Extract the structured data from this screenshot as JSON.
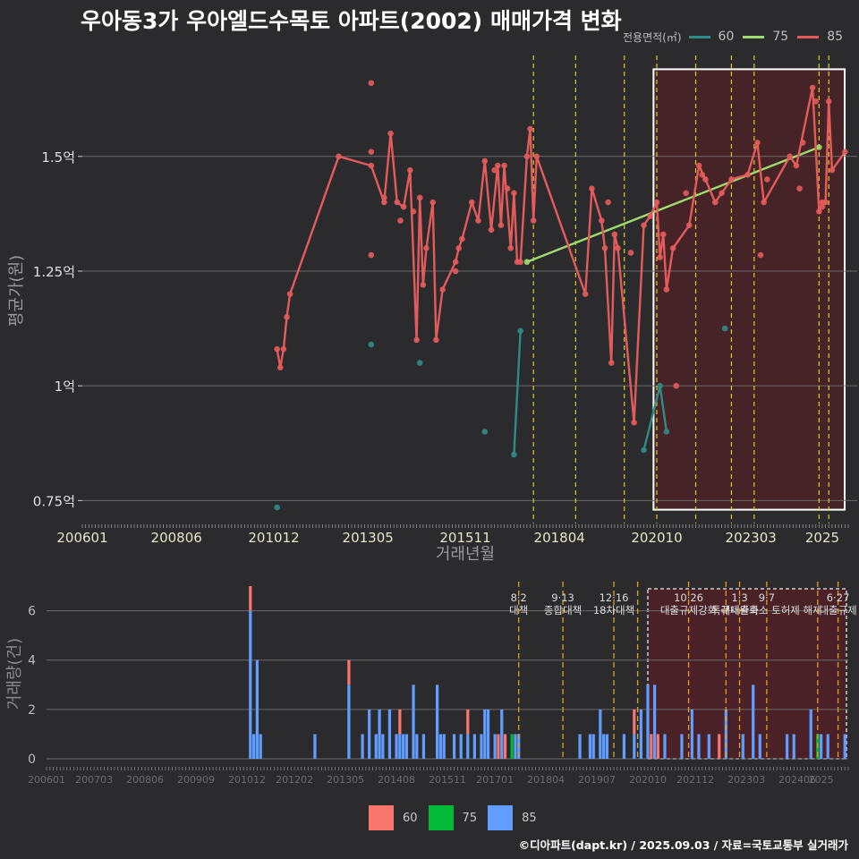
{
  "title": "우아동3가 우아엘드수목토 아파트(2002) 매매가격 변화",
  "credit": "©디아파트(dapt.kr) / 2025.09.03 / 자료=국토교통부 실거래가",
  "legend_top": {
    "title": "전용면적(㎡)",
    "items": [
      {
        "label": "60",
        "color": "#2e8b87"
      },
      {
        "label": "75",
        "color": "#9edc6e"
      },
      {
        "label": "85",
        "color": "#e45b5b"
      }
    ]
  },
  "legend_bottom": {
    "items": [
      {
        "label": "60",
        "color": "#f8766d"
      },
      {
        "label": "75",
        "color": "#00ba38"
      },
      {
        "label": "85",
        "color": "#619cff"
      }
    ]
  },
  "chart_data": [
    {
      "type": "line",
      "xlabel": "거래년월",
      "ylabel": "평균가(원)",
      "xlim": [
        "2006-01",
        "2025-09"
      ],
      "ylim": [
        0.7,
        1.72
      ],
      "x_ticks": [
        "200601",
        "200806",
        "201012",
        "201305",
        "201511",
        "201804",
        "202010",
        "202303",
        "2025"
      ],
      "y_ticks": [
        {
          "value": 0.75,
          "label": "0.75억"
        },
        {
          "value": 1.0,
          "label": "1억"
        },
        {
          "value": 1.25,
          "label": "1.25억"
        },
        {
          "value": 1.5,
          "label": "1.5억"
        }
      ],
      "highlight_region": {
        "x_start": "2020-09",
        "x_end": "2025-09",
        "y_start": 0.73,
        "y_end": 1.69
      },
      "vlines": [
        "2017-08",
        "2018-09",
        "2019-12",
        "2020-10",
        "2021-10",
        "2022-09",
        "2023-04",
        "2024-12",
        "2025-03"
      ],
      "series": [
        {
          "name": "60",
          "color": "#2e8b87",
          "line": [
            [
              "2017-02",
              0.85
            ],
            [
              "2017-04",
              1.12
            ]
          ],
          "line2": [
            [
              "2020-06",
              0.86
            ],
            [
              "2020-11",
              1.0
            ],
            [
              "2021-01",
              0.9
            ]
          ],
          "points": [
            [
              "2011-01",
              0.735
            ],
            [
              "2013-06",
              1.09
            ],
            [
              "2014-09",
              1.05
            ],
            [
              "2016-05",
              0.9
            ],
            [
              "2017-02",
              0.85
            ],
            [
              "2017-04",
              1.12
            ],
            [
              "2020-06",
              0.86
            ],
            [
              "2020-11",
              1.0
            ],
            [
              "2021-01",
              0.9
            ],
            [
              "2022-07",
              1.125
            ]
          ]
        },
        {
          "name": "75",
          "color": "#9edc6e",
          "line": [
            [
              "2017-06",
              1.27
            ],
            [
              "2024-12",
              1.52
            ]
          ],
          "points": [
            [
              "2017-06",
              1.27
            ],
            [
              "2024-12",
              1.52
            ]
          ]
        },
        {
          "name": "85",
          "color": "#e45b5b",
          "line": [
            [
              "2011-01",
              1.08
            ],
            [
              "2011-02",
              1.04
            ],
            [
              "2011-03",
              1.08
            ],
            [
              "2011-04",
              1.15
            ],
            [
              "2011-05",
              1.2
            ],
            [
              "2012-08",
              1.5
            ],
            [
              "2013-06",
              1.48
            ],
            [
              "2013-10",
              1.4
            ],
            [
              "2013-12",
              1.55
            ],
            [
              "2014-02",
              1.4
            ],
            [
              "2014-04",
              1.39
            ],
            [
              "2014-06",
              1.47
            ],
            [
              "2014-08",
              1.1
            ],
            [
              "2014-09",
              1.41
            ],
            [
              "2014-10",
              1.22
            ],
            [
              "2014-11",
              1.3
            ],
            [
              "2015-01",
              1.4
            ],
            [
              "2015-02",
              1.1
            ],
            [
              "2015-04",
              1.21
            ],
            [
              "2015-08",
              1.27
            ],
            [
              "2015-09",
              1.3
            ],
            [
              "2015-10",
              1.32
            ],
            [
              "2016-01",
              1.4
            ],
            [
              "2016-03",
              1.36
            ],
            [
              "2016-05",
              1.49
            ],
            [
              "2016-07",
              1.34
            ],
            [
              "2016-09",
              1.48
            ],
            [
              "2016-10",
              1.35
            ],
            [
              "2016-11",
              1.48
            ],
            [
              "2017-01",
              1.3
            ],
            [
              "2017-02",
              1.42
            ],
            [
              "2017-03",
              1.27
            ],
            [
              "2017-04",
              1.27
            ],
            [
              "2017-06",
              1.5
            ],
            [
              "2017-07",
              1.56
            ],
            [
              "2017-08",
              1.36
            ],
            [
              "2017-09",
              1.5
            ],
            [
              "2018-12",
              1.2
            ],
            [
              "2019-02",
              1.43
            ],
            [
              "2019-05",
              1.36
            ],
            [
              "2019-06",
              1.3
            ],
            [
              "2019-08",
              1.05
            ],
            [
              "2019-09",
              1.33
            ],
            [
              "2019-10",
              1.3
            ],
            [
              "2020-03",
              0.92
            ],
            [
              "2020-06",
              1.35
            ],
            [
              "2020-08",
              1.37
            ],
            [
              "2020-10",
              1.4
            ],
            [
              "2020-11",
              1.28
            ],
            [
              "2020-12",
              1.33
            ],
            [
              "2021-01",
              1.21
            ],
            [
              "2021-03",
              1.3
            ],
            [
              "2021-08",
              1.35
            ],
            [
              "2021-11",
              1.48
            ],
            [
              "2022-01",
              1.45
            ],
            [
              "2022-04",
              1.4
            ],
            [
              "2022-09",
              1.45
            ],
            [
              "2023-02",
              1.46
            ],
            [
              "2023-05",
              1.53
            ],
            [
              "2023-07",
              1.4
            ],
            [
              "2024-03",
              1.5
            ],
            [
              "2024-05",
              1.48
            ],
            [
              "2024-10",
              1.65
            ],
            [
              "2024-12",
              1.38
            ],
            [
              "2025-01",
              1.4
            ],
            [
              "2025-02",
              1.4
            ],
            [
              "2025-03",
              1.62
            ],
            [
              "2025-04",
              1.47
            ],
            [
              "2025-08",
              1.51
            ]
          ],
          "extra_points": [
            [
              "2013-06",
              1.66
            ],
            [
              "2013-06",
              1.51
            ],
            [
              "2013-06",
              1.285
            ],
            [
              "2013-10",
              1.41
            ],
            [
              "2014-03",
              1.36
            ],
            [
              "2014-07",
              1.38
            ],
            [
              "2015-08",
              1.25
            ],
            [
              "2016-08",
              1.47
            ],
            [
              "2016-12",
              1.43
            ],
            [
              "2019-07",
              1.4
            ],
            [
              "2020-02",
              1.29
            ],
            [
              "2021-07",
              1.42
            ],
            [
              "2022-06",
              1.42
            ],
            [
              "2023-06",
              1.285
            ],
            [
              "2024-06",
              1.43
            ],
            [
              "2024-07",
              1.53
            ],
            [
              "2025-01",
              1.39
            ],
            [
              "2021-04",
              1.0
            ],
            [
              "2021-12",
              1.46
            ],
            [
              "2023-08",
              1.45
            ],
            [
              "2024-11",
              1.62
            ]
          ]
        }
      ]
    },
    {
      "type": "bar",
      "xlabel": "",
      "ylabel": "거래량(건)",
      "xlim": [
        "2006-01",
        "2025-09"
      ],
      "ylim": [
        0,
        7
      ],
      "y_ticks": [
        0,
        2,
        4,
        6
      ],
      "x_ticks": [
        "200601",
        "200703",
        "200806",
        "200909",
        "201012",
        "201202",
        "201305",
        "201408",
        "201511",
        "201701",
        "201804",
        "201907",
        "202010",
        "202112",
        "202303",
        "202406",
        "2025"
      ],
      "highlight_region": {
        "x_start": "2020-10",
        "x_end": "2025-09"
      },
      "annotations": [
        {
          "date": "2017-08",
          "label": "8·2 대책"
        },
        {
          "date": "2018-09",
          "label": "9·13 종합대책"
        },
        {
          "date": "2019-12",
          "label": "12·16 18차대책"
        },
        {
          "date": "2020-07",
          "label": ""
        },
        {
          "date": "2021-10",
          "label": "10·26 대출규제강화"
        },
        {
          "date": "2022-09",
          "label": ""
        },
        {
          "date": "2023-01",
          "label": "1·3 규제완화"
        },
        {
          "date": "2023-09",
          "label": "9·7 특례대출축소 토허제 해제"
        },
        {
          "date": "2024-12",
          "label": ""
        },
        {
          "date": "2025-06",
          "label": "6·27 대출규제"
        }
      ],
      "series": [
        {
          "name": "60",
          "color": "#f8766d",
          "data": [
            [
              "2011-01",
              1
            ],
            [
              "2013-06",
              1
            ],
            [
              "2014-09",
              1
            ],
            [
              "2016-05",
              1
            ],
            [
              "2017-02",
              1
            ],
            [
              "2017-04",
              1
            ],
            [
              "2020-06",
              1
            ],
            [
              "2020-11",
              1
            ],
            [
              "2021-01",
              1
            ],
            [
              "2022-07",
              1
            ]
          ]
        },
        {
          "name": "75",
          "color": "#00ba38",
          "data": [
            [
              "2017-06",
              1
            ],
            [
              "2024-12",
              1
            ]
          ]
        },
        {
          "name": "85",
          "color": "#619cff",
          "data": [
            [
              "2011-01",
              6
            ],
            [
              "2011-02",
              1
            ],
            [
              "2011-03",
              4
            ],
            [
              "2011-04",
              1
            ],
            [
              "2012-08",
              1
            ],
            [
              "2013-06",
              3
            ],
            [
              "2013-10",
              1
            ],
            [
              "2013-12",
              2
            ],
            [
              "2014-02",
              1
            ],
            [
              "2014-03",
              2
            ],
            [
              "2014-04",
              1
            ],
            [
              "2014-06",
              2
            ],
            [
              "2014-08",
              1
            ],
            [
              "2014-09",
              1
            ],
            [
              "2014-10",
              1
            ],
            [
              "2014-11",
              1
            ],
            [
              "2015-01",
              3
            ],
            [
              "2015-02",
              1
            ],
            [
              "2015-04",
              1
            ],
            [
              "2015-08",
              3
            ],
            [
              "2015-09",
              1
            ],
            [
              "2015-10",
              1
            ],
            [
              "2016-01",
              1
            ],
            [
              "2016-03",
              1
            ],
            [
              "2016-05",
              1
            ],
            [
              "2016-07",
              1
            ],
            [
              "2016-09",
              1
            ],
            [
              "2016-10",
              2
            ],
            [
              "2016-11",
              2
            ],
            [
              "2017-01",
              1
            ],
            [
              "2017-03",
              2
            ],
            [
              "2017-07",
              1
            ],
            [
              "2017-08",
              1
            ],
            [
              "2019-02",
              1
            ],
            [
              "2019-05",
              1
            ],
            [
              "2019-06",
              1
            ],
            [
              "2019-08",
              2
            ],
            [
              "2019-09",
              1
            ],
            [
              "2019-10",
              1
            ],
            [
              "2020-03",
              1
            ],
            [
              "2020-06",
              1
            ],
            [
              "2020-08",
              2
            ],
            [
              "2020-10",
              3
            ],
            [
              "2020-12",
              3
            ],
            [
              "2021-03",
              1
            ],
            [
              "2021-08",
              1
            ],
            [
              "2021-11",
              2
            ],
            [
              "2022-01",
              1
            ],
            [
              "2022-04",
              1
            ],
            [
              "2022-09",
              2
            ],
            [
              "2023-02",
              1
            ],
            [
              "2023-05",
              3
            ],
            [
              "2023-07",
              1
            ],
            [
              "2024-03",
              1
            ],
            [
              "2024-05",
              1
            ],
            [
              "2024-10",
              2
            ],
            [
              "2025-01",
              1
            ],
            [
              "2025-03",
              1
            ],
            [
              "2025-08",
              1
            ]
          ]
        }
      ]
    }
  ]
}
